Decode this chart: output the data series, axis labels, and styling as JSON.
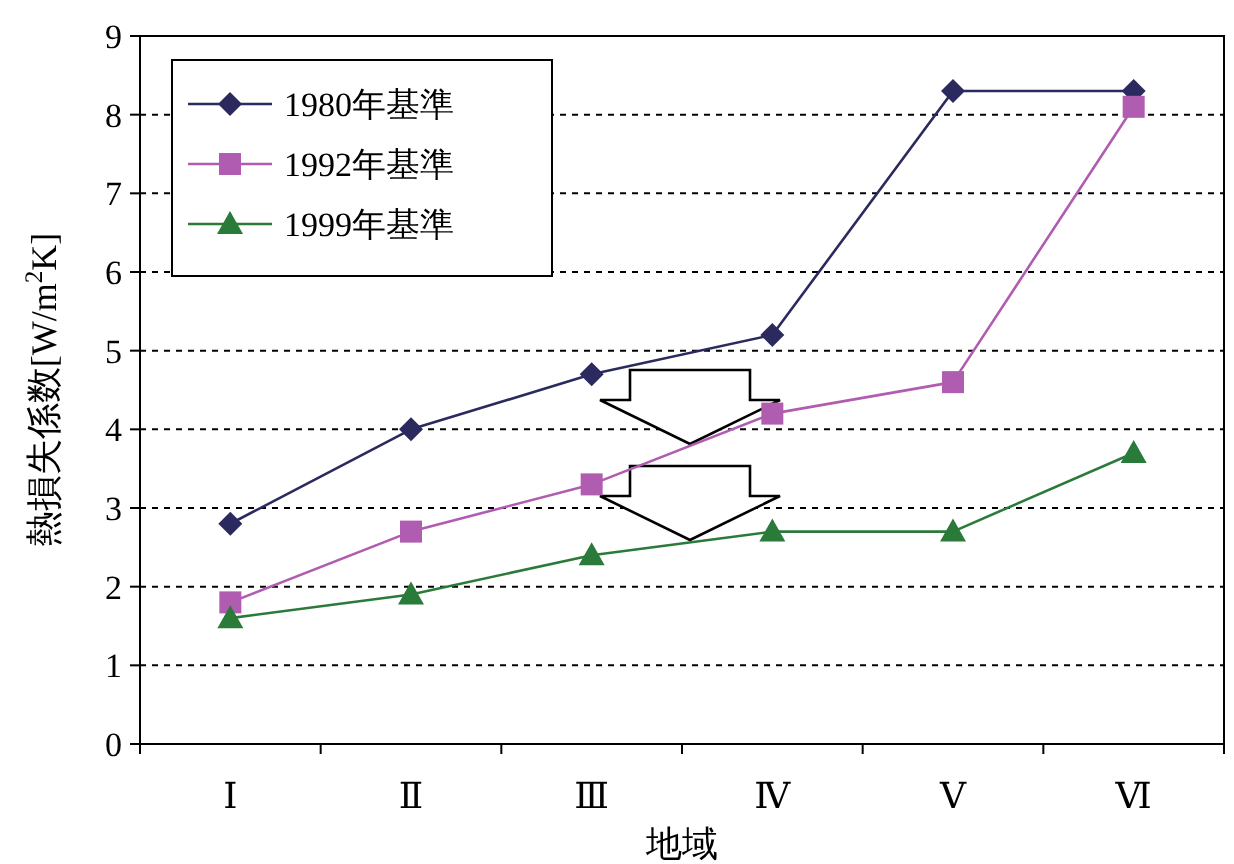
{
  "chart_data": {
    "type": "line",
    "xlabel": "地域",
    "ylabel": "熱損失係数[W/m$^{2}$K]",
    "categories": [
      "Ⅰ",
      "Ⅱ",
      "Ⅲ",
      "Ⅳ",
      "Ⅴ",
      "Ⅵ"
    ],
    "ylim": [
      0,
      9
    ],
    "yticks": [
      0,
      1,
      2,
      3,
      4,
      5,
      6,
      7,
      8,
      9
    ],
    "grid": "y",
    "legend": "top left",
    "series": [
      {
        "name": "1980年基準",
        "color": "#2b2a5e",
        "marker": "diamond",
        "values": [
          2.8,
          4.0,
          4.7,
          5.2,
          8.3,
          8.3
        ]
      },
      {
        "name": "1992年基準",
        "color": "#b05cb0",
        "marker": "square",
        "values": [
          1.8,
          2.7,
          3.3,
          4.2,
          4.6,
          8.1
        ]
      },
      {
        "name": "1999年基準",
        "color": "#2a7a3a",
        "marker": "triangle",
        "values": [
          1.6,
          1.9,
          2.4,
          2.7,
          2.7,
          3.7
        ]
      }
    ]
  }
}
